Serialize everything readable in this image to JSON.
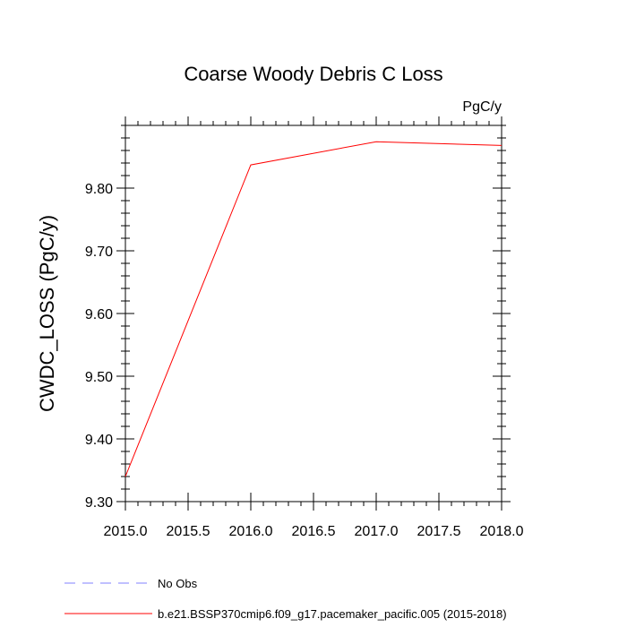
{
  "chart_data": {
    "type": "line",
    "title": "Coarse Woody Debris C Loss",
    "units": "PgC/y",
    "ylabel": "CWDC_LOSS  (PgC/y)",
    "xlabel": "",
    "xlim": [
      2015.0,
      2018.0
    ],
    "ylim": [
      9.3,
      9.9
    ],
    "x_ticks": [
      "2015.0",
      "2015.5",
      "2016.0",
      "2016.5",
      "2017.0",
      "2017.5",
      "2018.0"
    ],
    "y_ticks": [
      "9.30",
      "9.40",
      "9.50",
      "9.60",
      "9.70",
      "9.80"
    ],
    "grid": false,
    "legend_position": "bottom",
    "series": [
      {
        "name": "b.e21.BSSP370cmip6.f09_g17.pacemaker_pacific.005 (2015-2018)",
        "color": "#ff0000",
        "style": "solid",
        "x": [
          2015,
          2016,
          2017,
          2018
        ],
        "y": [
          9.34,
          9.837,
          9.874,
          9.868
        ]
      }
    ],
    "legend": [
      {
        "label": "No Obs",
        "color": "#8080ff",
        "style": "dashed"
      },
      {
        "label": "b.e21.BSSP370cmip6.f09_g17.pacemaker_pacific.005 (2015-2018)",
        "color": "#ff0000",
        "style": "solid"
      }
    ]
  }
}
